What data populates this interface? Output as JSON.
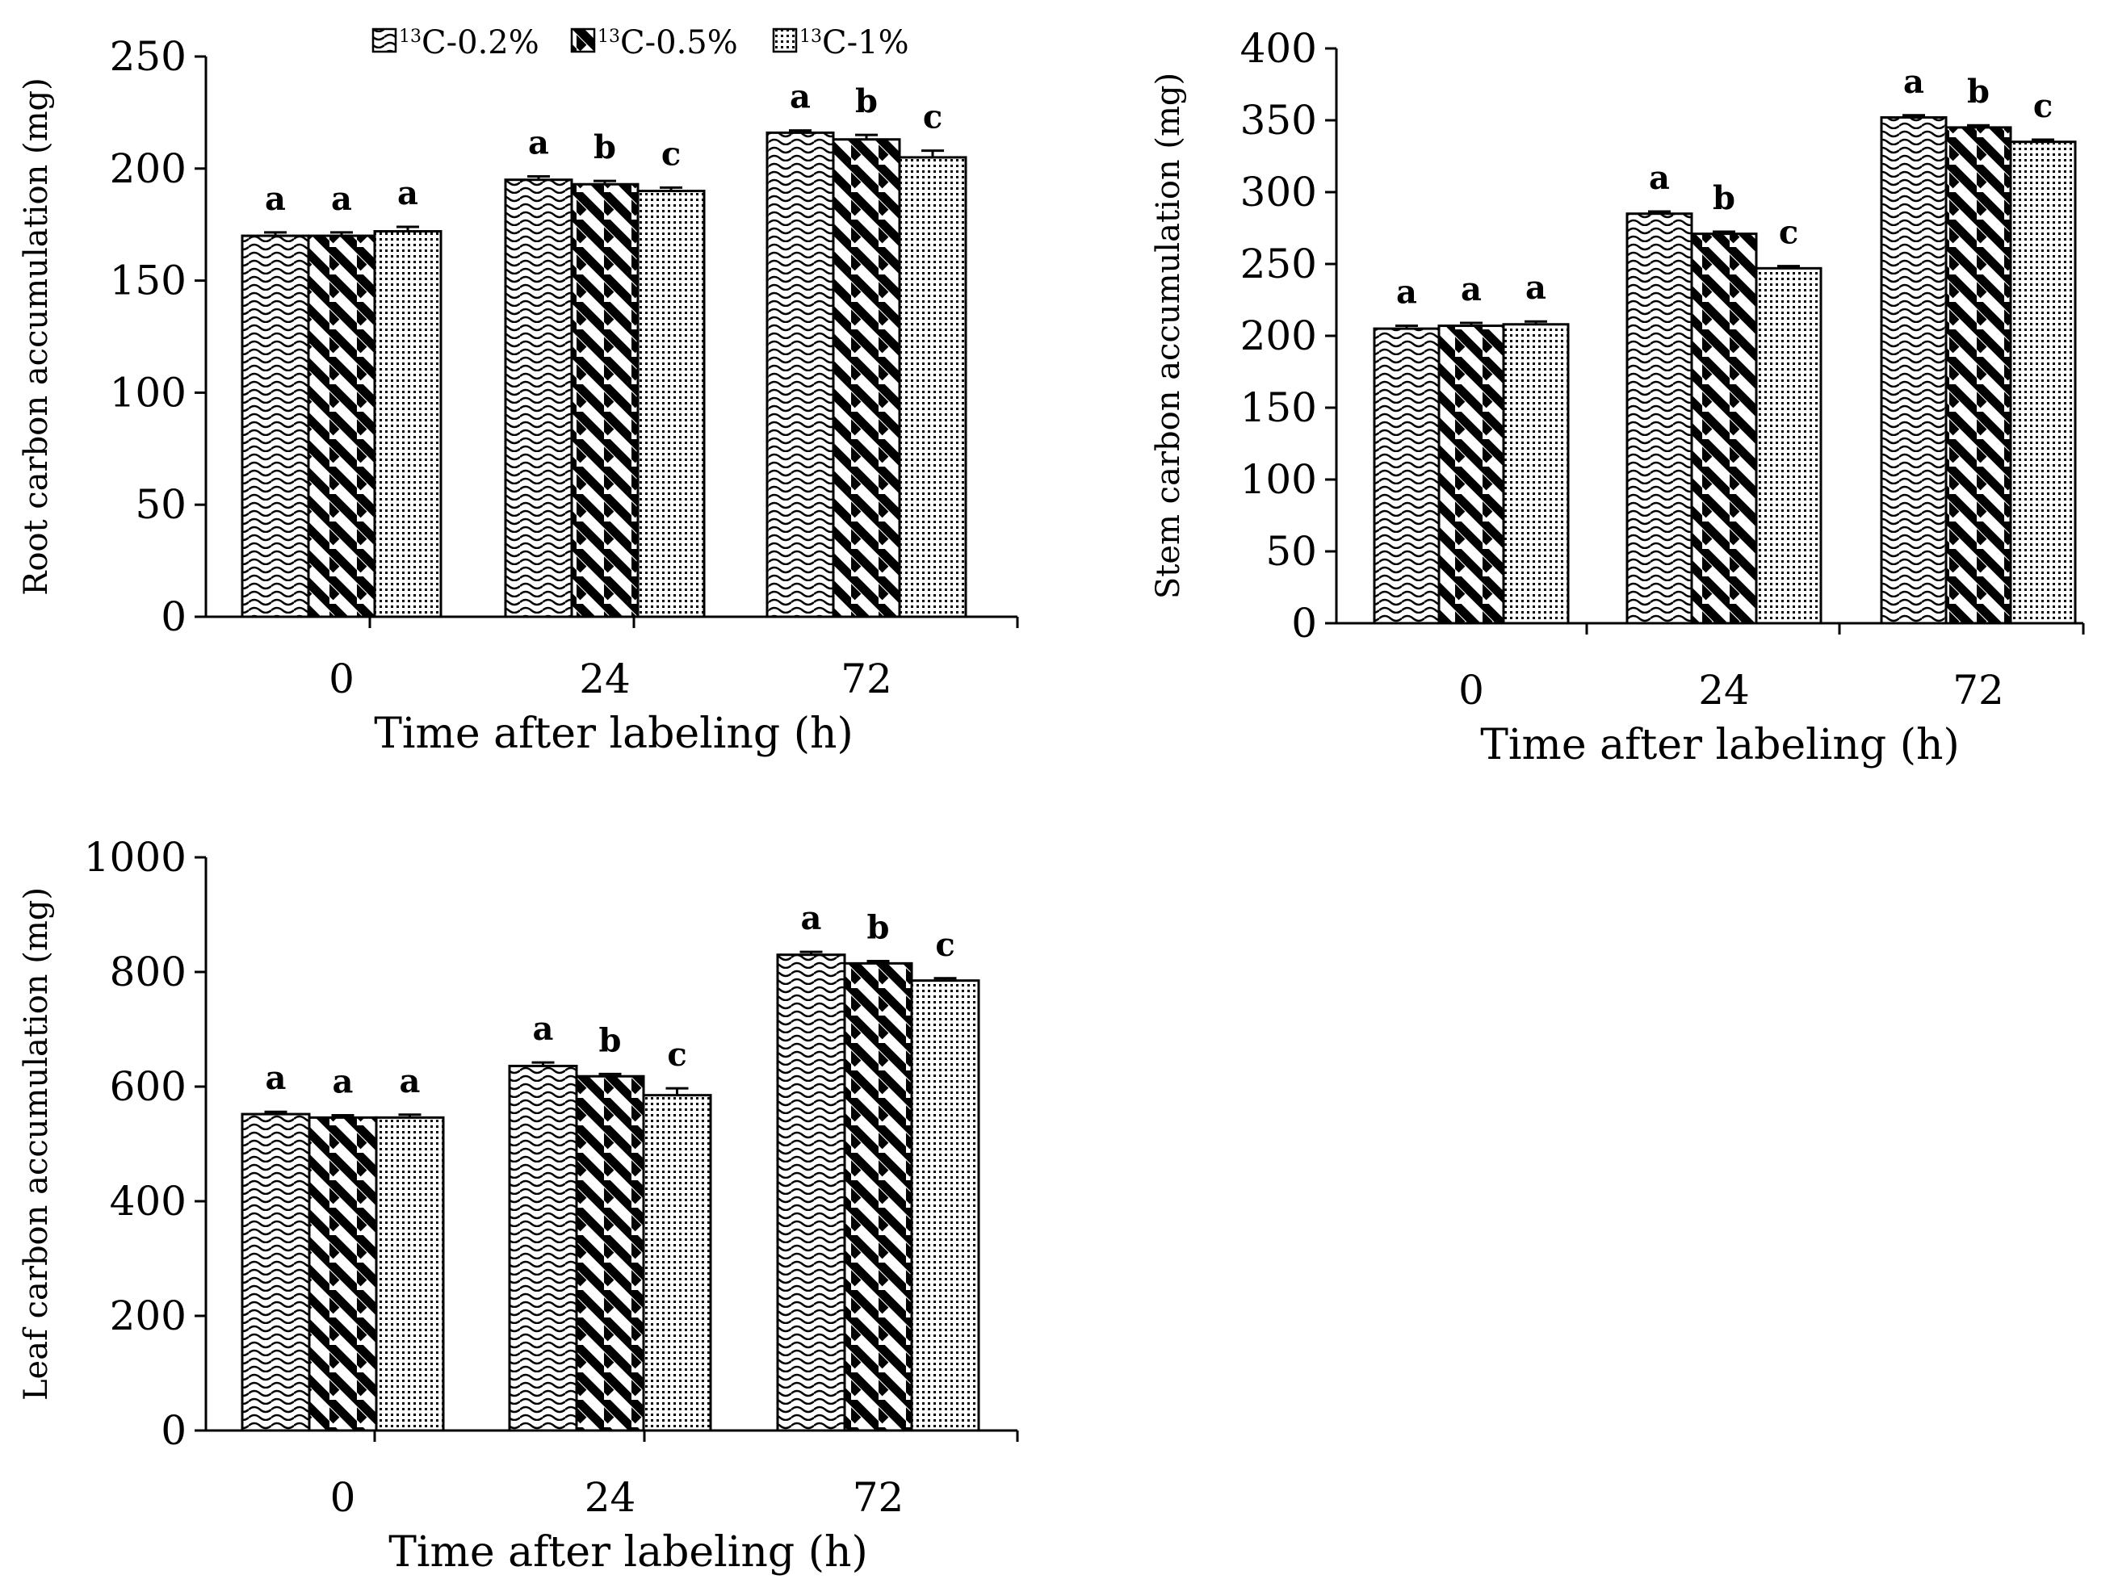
{
  "legend": {
    "entries": [
      {
        "sup": "13",
        "text": "C-0.2%"
      },
      {
        "sup": "13",
        "text": "C-0.5%"
      },
      {
        "sup": "13",
        "text": "C-1%"
      }
    ]
  },
  "chart_data": [
    {
      "type": "bar",
      "title": "",
      "xlabel": "Time after labeling (h)",
      "ylabel": "Root carbon accumulation (mg)",
      "categories": [
        "0",
        "24",
        "72"
      ],
      "ylim": [
        0,
        250
      ],
      "yticks": [
        0,
        50,
        100,
        150,
        200,
        250
      ],
      "series": [
        {
          "name": "13C-0.2%",
          "values": [
            170,
            195,
            216
          ],
          "errors": [
            1.5,
            1.5,
            1
          ],
          "letters": [
            "a",
            "a",
            "a"
          ]
        },
        {
          "name": "13C-0.5%",
          "values": [
            170,
            193,
            213
          ],
          "errors": [
            1.5,
            1.5,
            2
          ],
          "letters": [
            "a",
            "b",
            "b"
          ]
        },
        {
          "name": "13C-1%",
          "values": [
            172,
            190,
            205
          ],
          "errors": [
            2,
            1.5,
            3
          ],
          "letters": [
            "a",
            "c",
            "c"
          ]
        }
      ]
    },
    {
      "type": "bar",
      "title": "",
      "xlabel": "Time after labeling (h)",
      "ylabel": "Stem carbon accumulation (mg)",
      "categories": [
        "0",
        "24",
        "72"
      ],
      "ylim": [
        0,
        400
      ],
      "yticks": [
        0,
        50,
        100,
        150,
        200,
        250,
        300,
        350,
        400
      ],
      "series": [
        {
          "name": "13C-0.2%",
          "values": [
            205,
            285,
            352
          ],
          "errors": [
            2,
            1.5,
            1.5
          ],
          "letters": [
            "a",
            "a",
            "a"
          ]
        },
        {
          "name": "13C-0.5%",
          "values": [
            207,
            271,
            345
          ],
          "errors": [
            2,
            1.5,
            1.5
          ],
          "letters": [
            "a",
            "b",
            "b"
          ]
        },
        {
          "name": "13C-1%",
          "values": [
            208,
            247,
            335
          ],
          "errors": [
            2,
            1.5,
            1.5
          ],
          "letters": [
            "a",
            "c",
            "c"
          ]
        }
      ]
    },
    {
      "type": "bar",
      "title": "",
      "xlabel": "Time after labeling (h)",
      "ylabel": "Leaf carbon accumulation (mg)",
      "categories": [
        "0",
        "24",
        "72"
      ],
      "ylim": [
        0,
        1000
      ],
      "yticks": [
        0,
        200,
        400,
        600,
        800,
        1000
      ],
      "series": [
        {
          "name": "13C-0.2%",
          "values": [
            552,
            636,
            830
          ],
          "errors": [
            4,
            6,
            5
          ],
          "letters": [
            "a",
            "a",
            "a"
          ]
        },
        {
          "name": "13C-0.5%",
          "values": [
            546,
            618,
            815
          ],
          "errors": [
            4,
            4,
            4
          ],
          "letters": [
            "a",
            "b",
            "b"
          ]
        },
        {
          "name": "13C-1%",
          "values": [
            546,
            585,
            785
          ],
          "errors": [
            5,
            12,
            4
          ],
          "letters": [
            "a",
            "c",
            "c"
          ]
        }
      ]
    }
  ]
}
